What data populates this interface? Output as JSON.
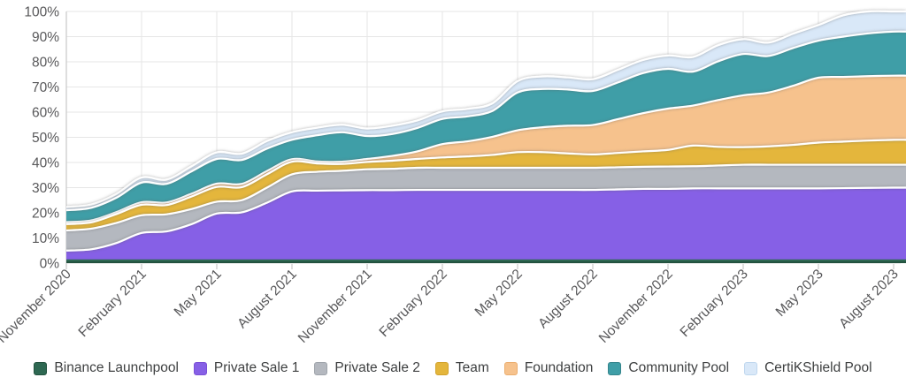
{
  "chart_data": {
    "type": "area",
    "stacked": true,
    "title": "",
    "xlabel": "",
    "ylabel": "",
    "ylim": [
      0,
      100
    ],
    "y_tick_step": 10,
    "y_tick_suffix": "%",
    "grid": true,
    "legend_position": "bottom",
    "n_points": 34,
    "x_tick_every": 3,
    "x_tick_labels": [
      "November 2020",
      "February 2021",
      "May 2021",
      "August 2021",
      "November 2021",
      "February 2022",
      "May 2022",
      "August 2022",
      "November 2022",
      "February 2023",
      "May 2023",
      "August 2023"
    ],
    "colors": {
      "axis_text": "#58585a",
      "grid_line": "#e6e6e6",
      "axis_line": "#c9c9c9",
      "band_outline": "#ffffff"
    },
    "series": [
      {
        "name": "Binance Launchpool",
        "color": "#2E6852",
        "border": "#23523F",
        "values": [
          1.5,
          1.5,
          1.5,
          1.5,
          1.5,
          1.5,
          1.5,
          1.5,
          1.5,
          1.5,
          1.5,
          1.5,
          1.5,
          1.5,
          1.5,
          1.5,
          1.5,
          1.5,
          1.5,
          1.5,
          1.5,
          1.5,
          1.5,
          1.5,
          1.5,
          1.5,
          1.5,
          1.5,
          1.5,
          1.5,
          1.5,
          1.5,
          1.5,
          1.5
        ]
      },
      {
        "name": "Private Sale 1",
        "color": "#8660E6",
        "border": "#7A4FD6",
        "values": [
          3.5,
          4,
          6.5,
          10.5,
          11.1,
          14,
          18.2,
          18.7,
          22.5,
          27,
          27.3,
          27.4,
          27.5,
          27.5,
          27.6,
          27.6,
          27.6,
          27.6,
          27.6,
          27.6,
          27.6,
          27.6,
          27.8,
          28,
          28,
          28.2,
          28.2,
          28.2,
          28.2,
          28.2,
          28.2,
          28.3,
          28.4,
          28.5
        ]
      },
      {
        "name": "Private Sale 2",
        "color": "#B4B8BF",
        "border": "#9FA4AB",
        "values": [
          8,
          8.2,
          8,
          7,
          6.8,
          6,
          4.7,
          4.8,
          6,
          6.8,
          7.5,
          7.8,
          8.3,
          8.5,
          8.8,
          8.8,
          8.8,
          8.8,
          8.8,
          8.8,
          8.8,
          8.8,
          8.8,
          8.8,
          8.9,
          8.8,
          9.1,
          9.4,
          9.4,
          9.4,
          9.4,
          9.3,
          9.2,
          9.1
        ]
      },
      {
        "name": "Team",
        "color": "#E4B63C",
        "border": "#D2A32E",
        "values": [
          2.5,
          2.5,
          3.5,
          4.2,
          3.7,
          5,
          5.9,
          5.2,
          5.3,
          5,
          3.3,
          2.7,
          2.9,
          3.2,
          3.5,
          4.1,
          4.5,
          5.1,
          6.2,
          6.2,
          5.7,
          5.3,
          5.7,
          6.1,
          6.6,
          8.2,
          7.4,
          7,
          7.3,
          7.9,
          8.8,
          9.2,
          9.6,
          9.9
        ]
      },
      {
        "name": "Foundation",
        "color": "#F6C28D",
        "border": "#EBAE6F",
        "values": [
          0.8,
          0.8,
          0.8,
          1,
          1,
          1.1,
          1.3,
          1.3,
          1.3,
          1,
          0.8,
          0.9,
          1.2,
          1.9,
          3,
          5.3,
          6,
          7.2,
          8.7,
          9.9,
          11,
          11.7,
          13.4,
          15.2,
          16.4,
          15.9,
          18.6,
          20.6,
          21.4,
          23.5,
          25.8,
          25.7,
          25.6,
          25.5
        ]
      },
      {
        "name": "Community Pool",
        "color": "#3F9EA7",
        "border": "#35858C",
        "values": [
          4.7,
          5,
          5.7,
          7.8,
          7.4,
          8.9,
          9.8,
          9.5,
          8.9,
          7.7,
          10.4,
          11.7,
          9.1,
          8.7,
          9.3,
          10,
          9.9,
          10.3,
          15,
          15.2,
          14.4,
          13.5,
          14.6,
          15.9,
          15.8,
          13.5,
          15.4,
          16.4,
          14.5,
          15,
          14.7,
          16,
          17,
          17.5
        ]
      },
      {
        "name": "CertiKShield Pool",
        "color": "#D9E8F8",
        "border": "#BFD7EE",
        "values": [
          1.3,
          1.3,
          1.5,
          2,
          1.7,
          2,
          2.6,
          2.5,
          3,
          3,
          3,
          3,
          3,
          3.3,
          3,
          3,
          3,
          3,
          4.5,
          5,
          4.8,
          4.7,
          5,
          5.2,
          5.3,
          5.8,
          6.4,
          5.9,
          5.3,
          5.7,
          6.2,
          8.5,
          8.7,
          8
        ]
      }
    ]
  }
}
